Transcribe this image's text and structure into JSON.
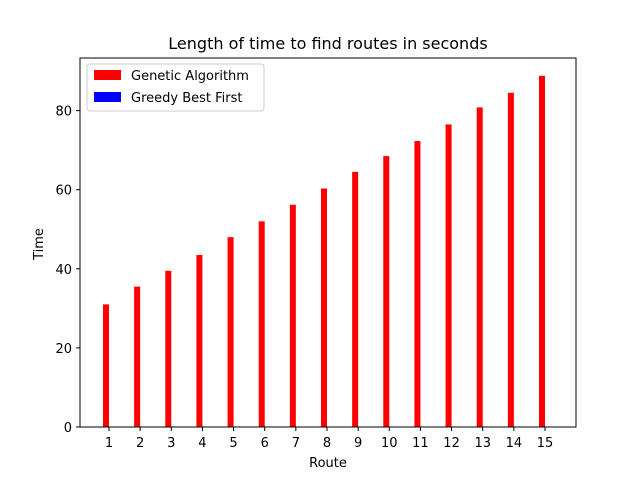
{
  "chart_data": {
    "type": "bar",
    "title": "Length of time to find routes in seconds",
    "xlabel": "Route",
    "ylabel": "Time",
    "categories": [
      "1",
      "2",
      "3",
      "4",
      "5",
      "6",
      "7",
      "8",
      "9",
      "10",
      "11",
      "12",
      "13",
      "14",
      "15"
    ],
    "series": [
      {
        "name": "Genetic Algorithm",
        "color": "#ff0000",
        "values": [
          31.0,
          35.5,
          39.5,
          43.5,
          48.0,
          52.0,
          56.2,
          60.3,
          64.5,
          68.5,
          72.3,
          76.5,
          80.8,
          84.5,
          88.8
        ]
      },
      {
        "name": "Greedy Best First",
        "color": "#0000ff",
        "values": [
          0.02,
          0.02,
          0.02,
          0.02,
          0.02,
          0.02,
          0.02,
          0.02,
          0.02,
          0.02,
          0.02,
          0.02,
          0.02,
          0.02,
          0.02
        ]
      }
    ],
    "yticks": [
      0,
      20,
      40,
      60,
      80
    ],
    "ylim": [
      0,
      93.3
    ],
    "legend": "top-left",
    "grid": false
  }
}
